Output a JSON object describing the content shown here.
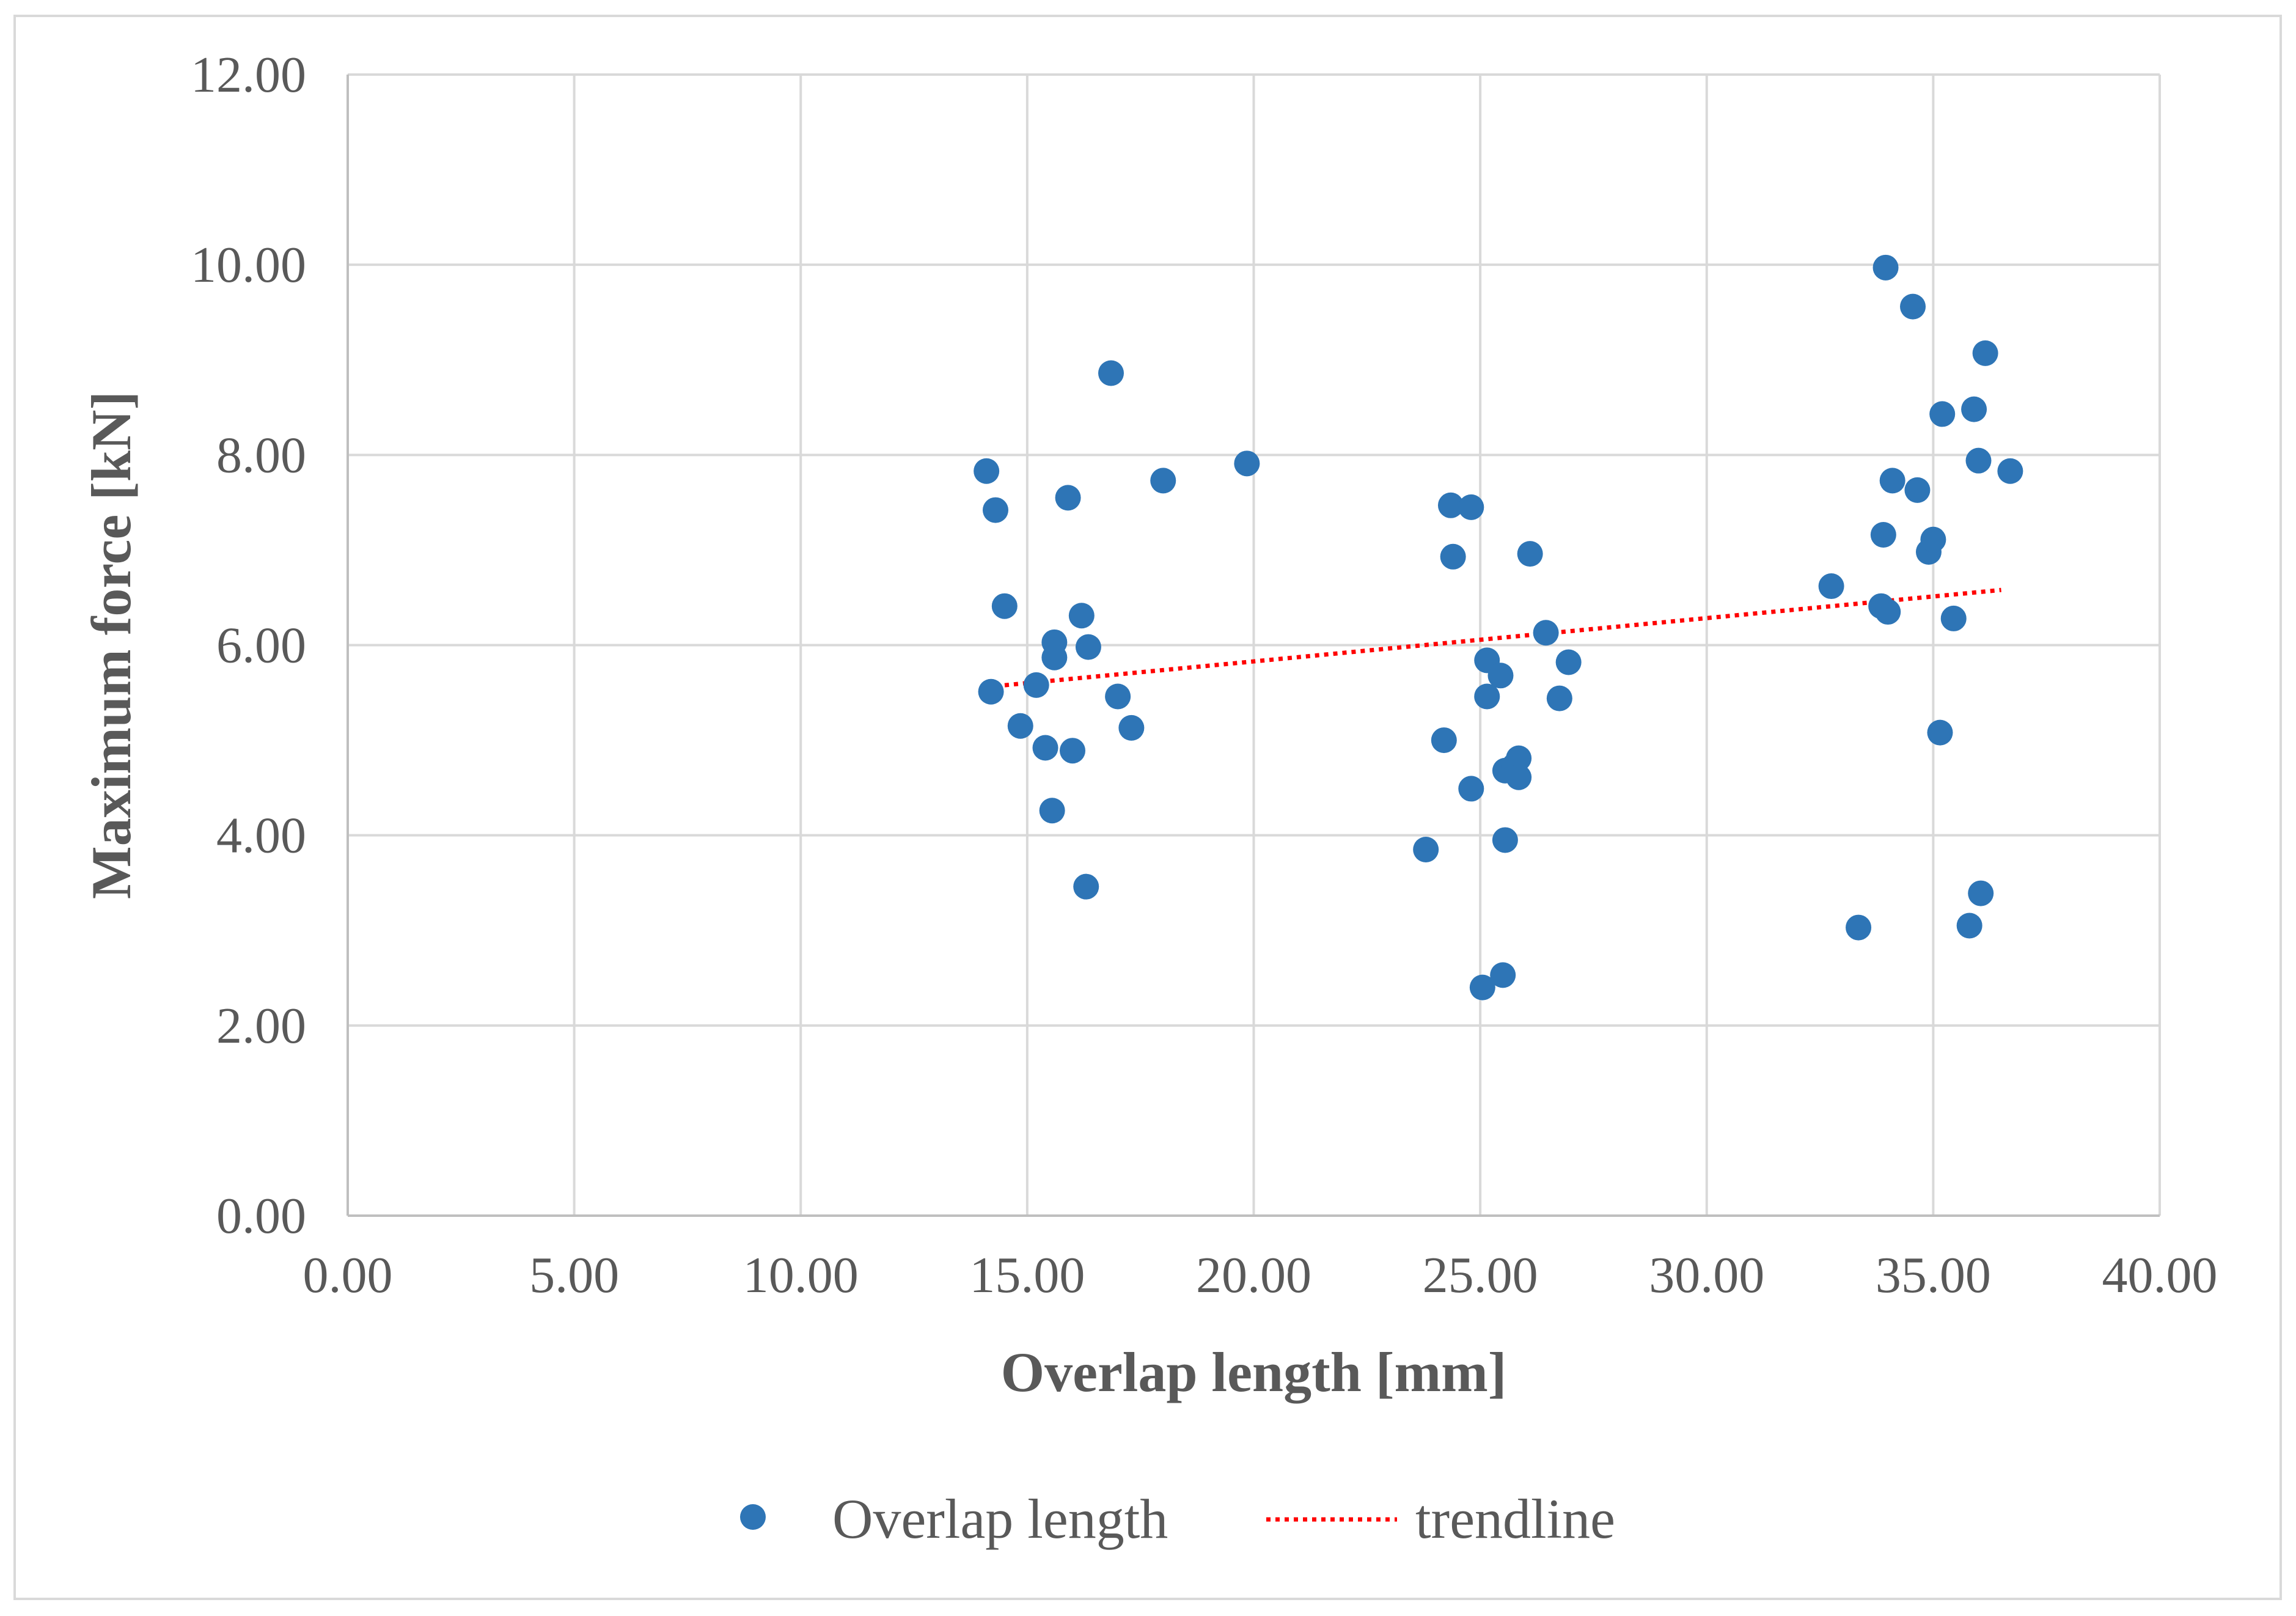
{
  "chart_data": {
    "type": "scatter",
    "title": "",
    "xlabel": "Overlap length [mm]",
    "ylabel": "Maximum force [kN]",
    "xlim": [
      0,
      40
    ],
    "ylim": [
      0,
      12
    ],
    "x_ticks": [
      "0.00",
      "5.00",
      "10.00",
      "15.00",
      "20.00",
      "25.00",
      "30.00",
      "35.00",
      "40.00"
    ],
    "y_ticks": [
      "0.00",
      "2.00",
      "4.00",
      "6.00",
      "8.00",
      "10.00",
      "12.00"
    ],
    "grid": true,
    "legend_position": "bottom",
    "series": [
      {
        "name": "Overlap length",
        "kind": "points",
        "color": "#2e75b6",
        "points": [
          [
            14.1,
            7.83
          ],
          [
            14.3,
            7.42
          ],
          [
            14.5,
            6.41
          ],
          [
            14.2,
            5.51
          ],
          [
            15.2,
            5.58
          ],
          [
            14.85,
            5.15
          ],
          [
            15.4,
            4.92
          ],
          [
            15.6,
            6.03
          ],
          [
            15.6,
            5.87
          ],
          [
            15.9,
            7.55
          ],
          [
            15.55,
            4.26
          ],
          [
            16.0,
            4.89
          ],
          [
            16.2,
            6.31
          ],
          [
            16.35,
            5.98
          ],
          [
            16.3,
            3.46
          ],
          [
            16.85,
            8.86
          ],
          [
            17.0,
            5.46
          ],
          [
            17.3,
            5.13
          ],
          [
            18.0,
            7.73
          ],
          [
            19.85,
            7.91
          ],
          [
            23.8,
            3.85
          ],
          [
            24.2,
            5.0
          ],
          [
            24.35,
            7.47
          ],
          [
            24.4,
            6.93
          ],
          [
            24.8,
            7.45
          ],
          [
            24.8,
            4.49
          ],
          [
            25.05,
            2.4
          ],
          [
            25.15,
            5.84
          ],
          [
            25.15,
            5.46
          ],
          [
            25.45,
            5.68
          ],
          [
            25.5,
            2.53
          ],
          [
            25.55,
            3.95
          ],
          [
            25.55,
            4.68
          ],
          [
            25.75,
            4.73
          ],
          [
            25.85,
            4.81
          ],
          [
            25.85,
            4.61
          ],
          [
            26.1,
            6.96
          ],
          [
            26.45,
            6.13
          ],
          [
            26.75,
            5.44
          ],
          [
            26.95,
            5.82
          ],
          [
            32.75,
            6.62
          ],
          [
            33.35,
            3.03
          ],
          [
            33.85,
            6.41
          ],
          [
            33.9,
            7.16
          ],
          [
            33.95,
            9.97
          ],
          [
            34.0,
            6.35
          ],
          [
            34.1,
            7.73
          ],
          [
            34.55,
            9.56
          ],
          [
            34.65,
            7.63
          ],
          [
            34.9,
            6.98
          ],
          [
            35.0,
            7.11
          ],
          [
            35.15,
            5.08
          ],
          [
            35.2,
            8.43
          ],
          [
            35.45,
            6.28
          ],
          [
            35.8,
            3.05
          ],
          [
            35.9,
            8.48
          ],
          [
            36.0,
            7.94
          ],
          [
            36.05,
            3.39
          ],
          [
            36.15,
            9.07
          ],
          [
            36.7,
            7.83
          ]
        ]
      },
      {
        "name": "trendline",
        "kind": "line",
        "style": "dotted",
        "color": "#ff0000",
        "points": [
          [
            14.1,
            5.56
          ],
          [
            36.5,
            6.58
          ]
        ]
      }
    ]
  }
}
